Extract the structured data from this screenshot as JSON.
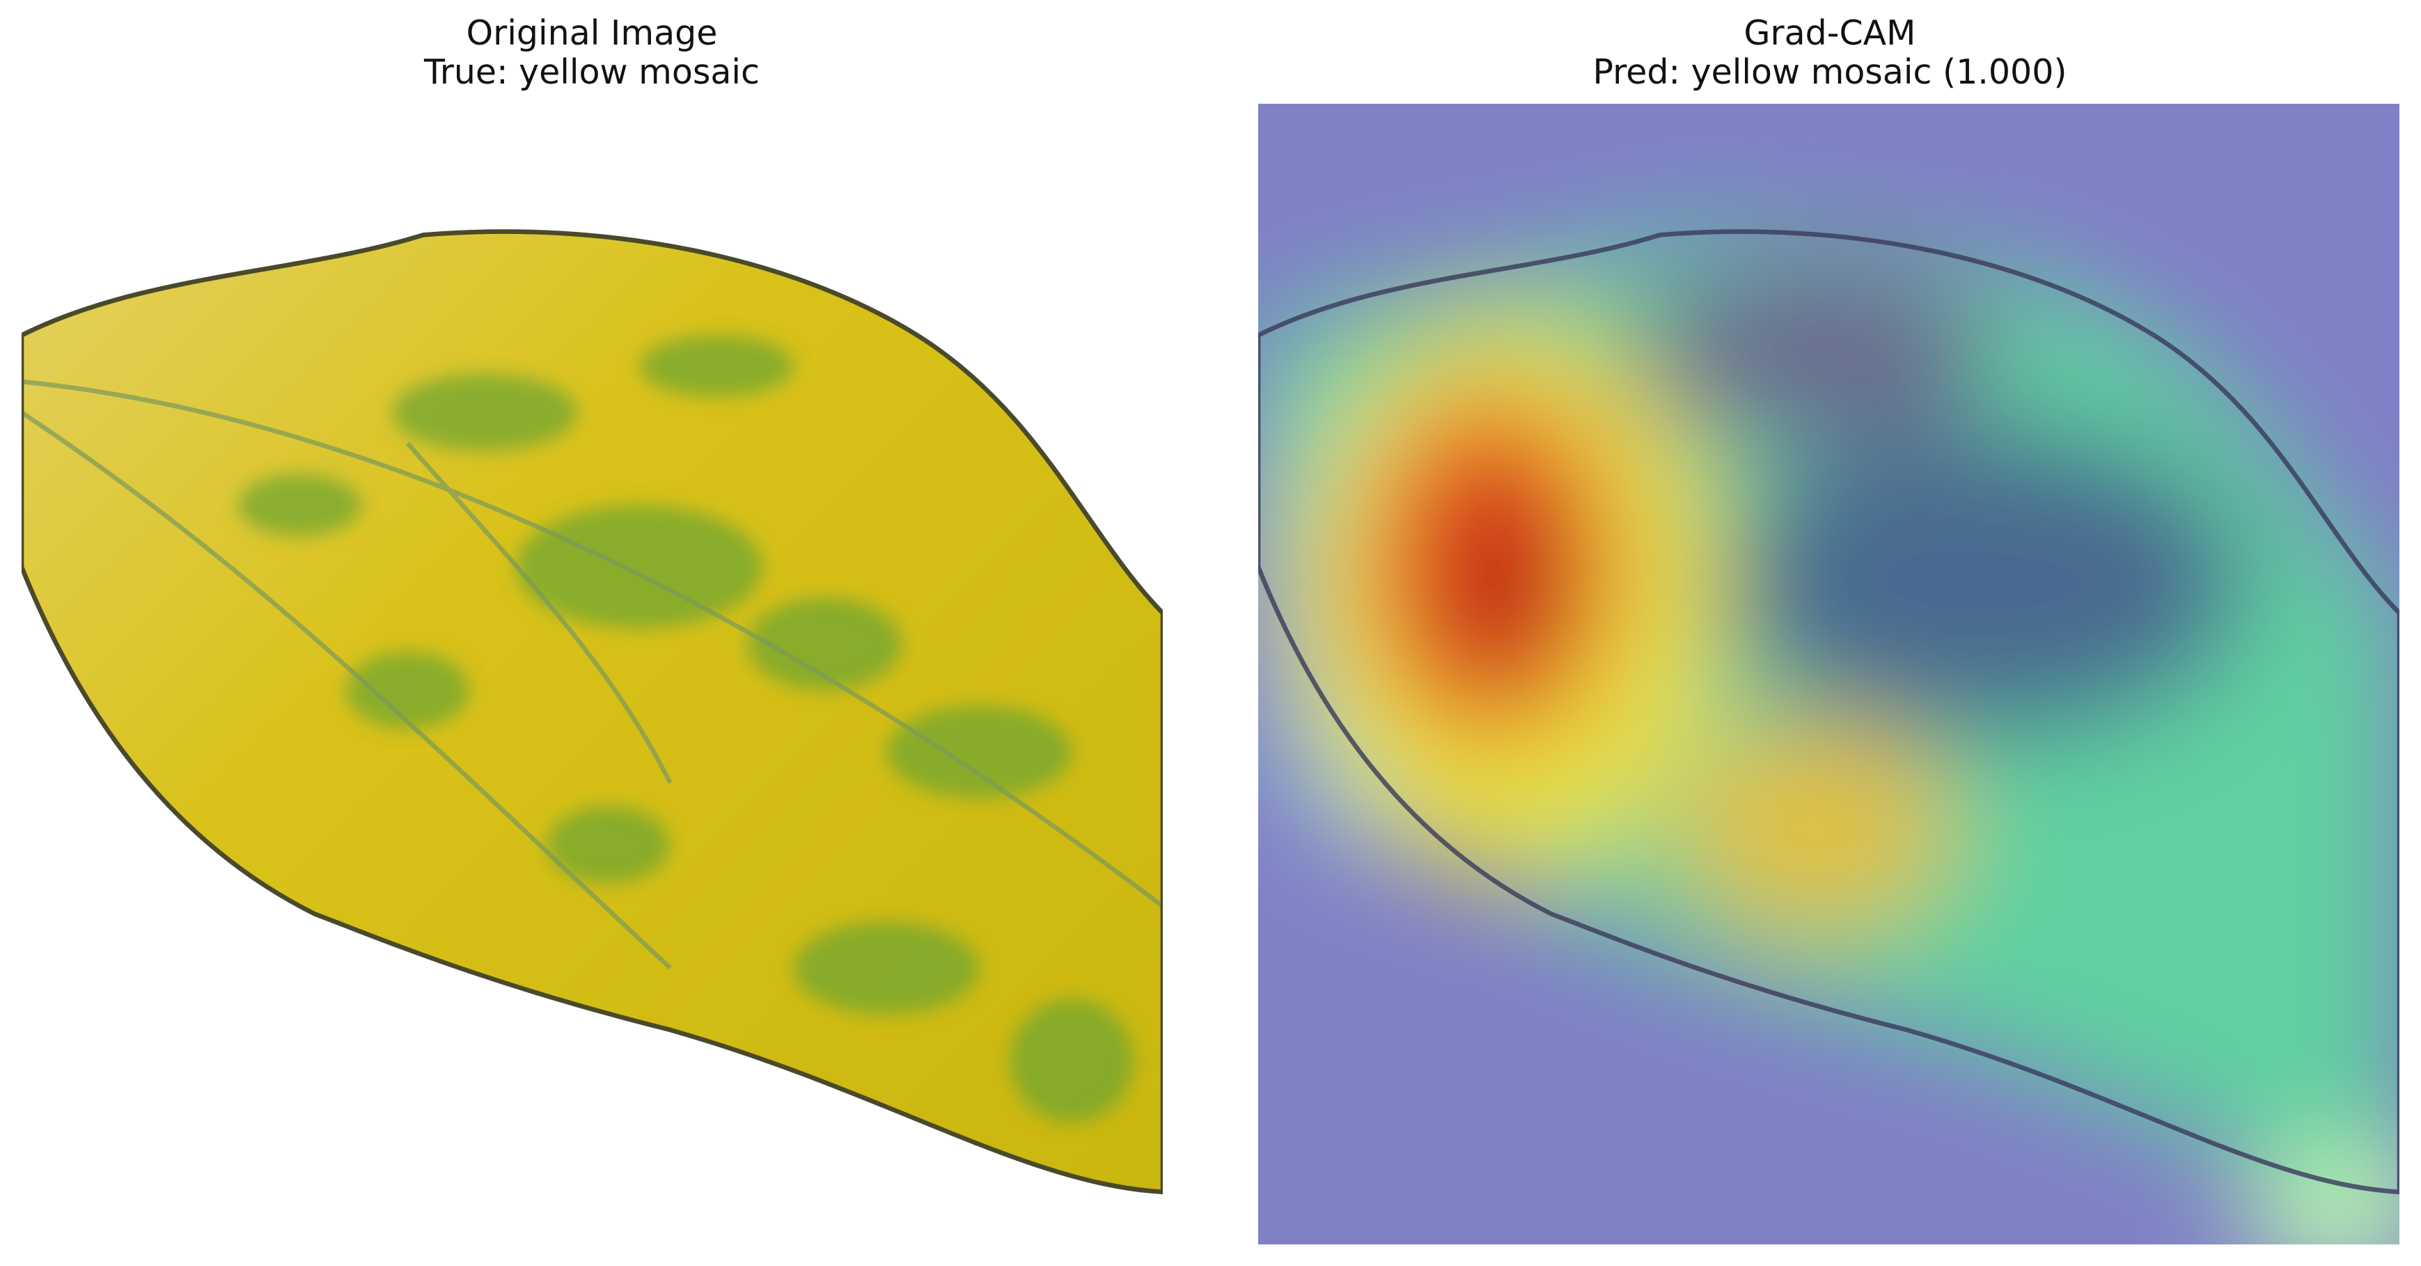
{
  "panels": [
    {
      "title": [
        "Original Image",
        "True: yellow mosaic"
      ]
    },
    {
      "title": [
        "Grad-CAM",
        "Pred: yellow mosaic (1.000)"
      ]
    }
  ]
}
